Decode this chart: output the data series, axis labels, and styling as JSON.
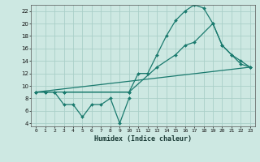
{
  "xlabel": "Humidex (Indice chaleur)",
  "bg_color": "#cde8e2",
  "grid_color": "#aacfc8",
  "line_color": "#1a7a6e",
  "xlim": [
    -0.5,
    23.5
  ],
  "ylim": [
    3.5,
    23
  ],
  "xticks": [
    0,
    1,
    2,
    3,
    4,
    5,
    6,
    7,
    8,
    9,
    10,
    11,
    12,
    13,
    14,
    15,
    16,
    17,
    18,
    19,
    20,
    21,
    22,
    23
  ],
  "yticks": [
    4,
    6,
    8,
    10,
    12,
    14,
    16,
    18,
    20,
    22
  ],
  "lines": [
    {
      "x": [
        0,
        1,
        2,
        3,
        10,
        11,
        12,
        13,
        14,
        15,
        16,
        17,
        18,
        19,
        20,
        21,
        22,
        23
      ],
      "y": [
        9,
        9,
        9,
        9,
        9,
        12,
        12,
        15,
        18,
        20.5,
        22,
        23,
        22.5,
        20,
        16.5,
        15,
        13.5,
        13
      ]
    },
    {
      "x": [
        0,
        1,
        2,
        3,
        4,
        5,
        6,
        7,
        8,
        9,
        10
      ],
      "y": [
        9,
        9,
        9,
        7,
        7,
        5,
        7,
        7,
        8,
        4,
        8
      ]
    },
    {
      "x": [
        0,
        23
      ],
      "y": [
        9,
        13
      ]
    },
    {
      "x": [
        3,
        10,
        13,
        15,
        16,
        17,
        19,
        20,
        21,
        22,
        23
      ],
      "y": [
        9,
        9,
        13,
        15,
        16.5,
        17,
        20,
        16.5,
        15,
        14,
        13
      ]
    }
  ]
}
